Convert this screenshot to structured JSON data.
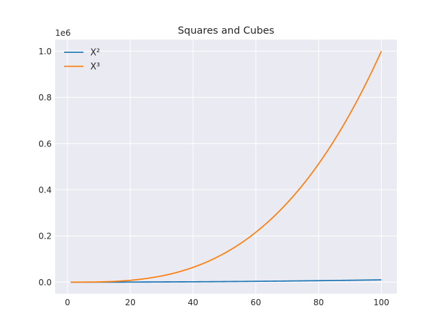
{
  "chart_data": {
    "type": "line",
    "title": "Squares and Cubes",
    "xlabel": "",
    "ylabel": "",
    "y_offset_label": "1e6",
    "xlim": [
      -3.95,
      104.95
    ],
    "ylim": [
      -0.05,
      1.05
    ],
    "x_ticks": [
      0,
      20,
      40,
      60,
      80,
      100
    ],
    "y_ticks": [
      0.0,
      0.2,
      0.4,
      0.6,
      0.8,
      1.0
    ],
    "x_tick_labels": [
      "0",
      "20",
      "40",
      "60",
      "80",
      "100"
    ],
    "y_tick_labels": [
      "0.0",
      "0.2",
      "0.4",
      "0.6",
      "0.8",
      "1.0"
    ],
    "grid": true,
    "legend_position": "top-left",
    "x_range": [
      1,
      100
    ],
    "series": [
      {
        "name": "X²",
        "color": "#1f77b4",
        "function": "x^2",
        "scale": 1e-06
      },
      {
        "name": "X³",
        "color": "#ff7f0e",
        "function": "x^3",
        "scale": 1e-06
      }
    ]
  }
}
